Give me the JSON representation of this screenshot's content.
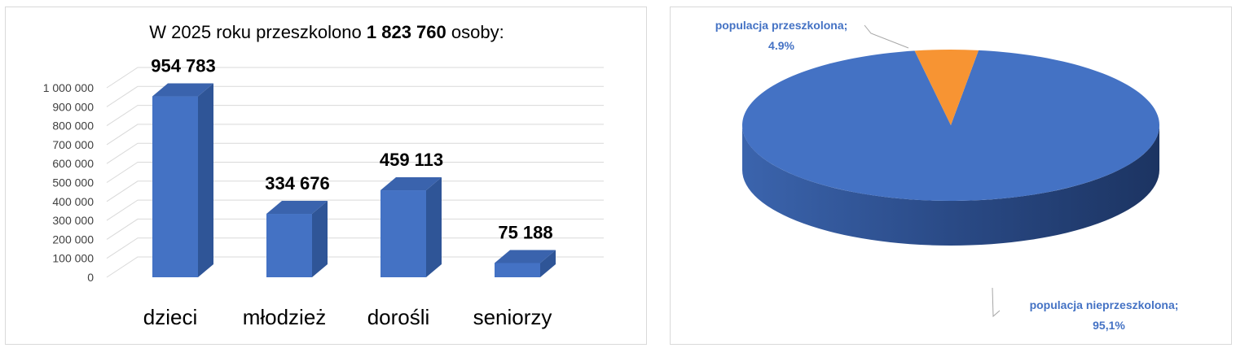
{
  "chart_data": [
    {
      "type": "bar",
      "title_prefix": "W 2025 roku przeszkolono ",
      "title_bold": "1 823 760",
      "title_suffix": " osoby:",
      "categories": [
        "dzieci",
        "młodzież",
        "dorośli",
        "seniorzy"
      ],
      "values": [
        954783,
        334676,
        459113,
        75188
      ],
      "data_labels": [
        "954 783",
        "334 676",
        "459 113",
        "75 188"
      ],
      "yticks": [
        0,
        100000,
        200000,
        300000,
        400000,
        500000,
        600000,
        700000,
        800000,
        900000,
        1000000
      ],
      "ytick_labels": [
        "0",
        "100 000",
        "200 000",
        "300 000",
        "400 000",
        "500 000",
        "600 000",
        "700 000",
        "800 000",
        "900 000",
        "1 000 000"
      ],
      "ylim": [
        0,
        1000000
      ],
      "grid": true,
      "colors": {
        "front": "#4472c4",
        "top": "#3a63ad",
        "side": "#2f5597"
      }
    },
    {
      "type": "pie",
      "slices": [
        {
          "label_name": "populacja przeszkolona;",
          "label_value": "4.9%",
          "value": 4.9,
          "color": "#f79433"
        },
        {
          "label_name": "populacja nieprzeszkolona;",
          "label_value": "95,1%",
          "value": 95.1,
          "color": "#4472c4"
        }
      ],
      "label_color": "#4472c4"
    }
  ]
}
